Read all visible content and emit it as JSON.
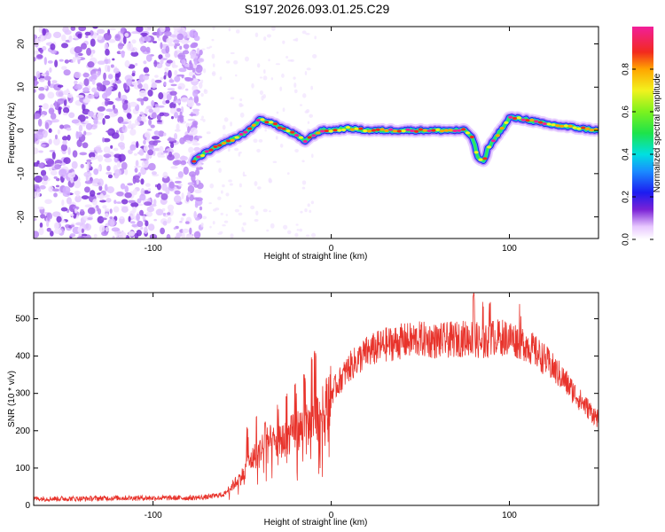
{
  "title": "S197.2026.093.01.25.C29",
  "chart_data": [
    {
      "type": "heatmap",
      "title": "S197.2026.093.01.25.C29",
      "xlabel": "Height of straight line (km)",
      "ylabel": "Frequency (Hz)",
      "xlim": [
        -167,
        150
      ],
      "ylim": [
        -25,
        24
      ],
      "xticks": [
        -100,
        0,
        100
      ],
      "yticks": [
        -20,
        -10,
        0,
        10,
        20
      ],
      "noise_region_x": [
        -167,
        -73
      ],
      "trace": {
        "x": [
          -77,
          -70,
          -60,
          -50,
          -45,
          -40,
          -35,
          -30,
          -25,
          -20,
          -15,
          -10,
          -5,
          0,
          10,
          20,
          30,
          40,
          50,
          60,
          65,
          70,
          75,
          78,
          80,
          82,
          84,
          86,
          88,
          90,
          95,
          98,
          100,
          110,
          120,
          130,
          140,
          150
        ],
        "freq": [
          -7,
          -5,
          -3,
          -1,
          0.5,
          2.5,
          2,
          1,
          0,
          -1,
          -2.5,
          -1,
          0,
          0,
          0.5,
          0,
          0,
          0,
          0,
          0,
          0,
          0,
          0,
          -1,
          -2.5,
          -6,
          -7,
          -7,
          -4,
          -3,
          0,
          1.5,
          3,
          2.5,
          1.5,
          1,
          0.5,
          0
        ]
      },
      "colorbar": {
        "label": "Normalized spectral amplitude",
        "range": [
          0,
          1
        ],
        "ticks": [
          0.0,
          0.2,
          0.4,
          0.6,
          0.8
        ]
      }
    },
    {
      "type": "line",
      "xlabel": "Height of straight line (km)",
      "ylabel": "SNR (10 * v/v)",
      "xlim": [
        -167,
        150
      ],
      "ylim": [
        0,
        570
      ],
      "xticks": [
        -100,
        0,
        100
      ],
      "yticks": [
        0,
        100,
        200,
        300,
        400,
        500
      ],
      "color": "#e8332b",
      "envelope": {
        "x": [
          -167,
          -140,
          -120,
          -100,
          -80,
          -70,
          -60,
          -55,
          -50,
          -45,
          -40,
          -35,
          -30,
          -25,
          -20,
          -15,
          -10,
          -5,
          0,
          10,
          20,
          30,
          40,
          50,
          60,
          70,
          80,
          85,
          90,
          100,
          110,
          120,
          130,
          140,
          150
        ],
        "y": [
          18,
          18,
          20,
          20,
          20,
          22,
          30,
          55,
          80,
          120,
          150,
          170,
          165,
          180,
          200,
          210,
          220,
          250,
          300,
          370,
          410,
          430,
          440,
          445,
          440,
          445,
          450,
          430,
          450,
          450,
          430,
          390,
          340,
          280,
          230
        ]
      },
      "spikes": [
        {
          "x": -47,
          "y": 210
        },
        {
          "x": -42,
          "y": 240
        },
        {
          "x": -37,
          "y": 225
        },
        {
          "x": -30,
          "y": 270
        },
        {
          "x": -25,
          "y": 300
        },
        {
          "x": -20,
          "y": 330
        },
        {
          "x": -15,
          "y": 355
        },
        {
          "x": -11,
          "y": 405
        },
        {
          "x": -9,
          "y": 415
        },
        {
          "x": 80,
          "y": 570
        },
        {
          "x": 85,
          "y": 545
        },
        {
          "x": 89,
          "y": 545
        },
        {
          "x": 106,
          "y": 540
        },
        {
          "x": 97,
          "y": 420
        }
      ]
    }
  ]
}
